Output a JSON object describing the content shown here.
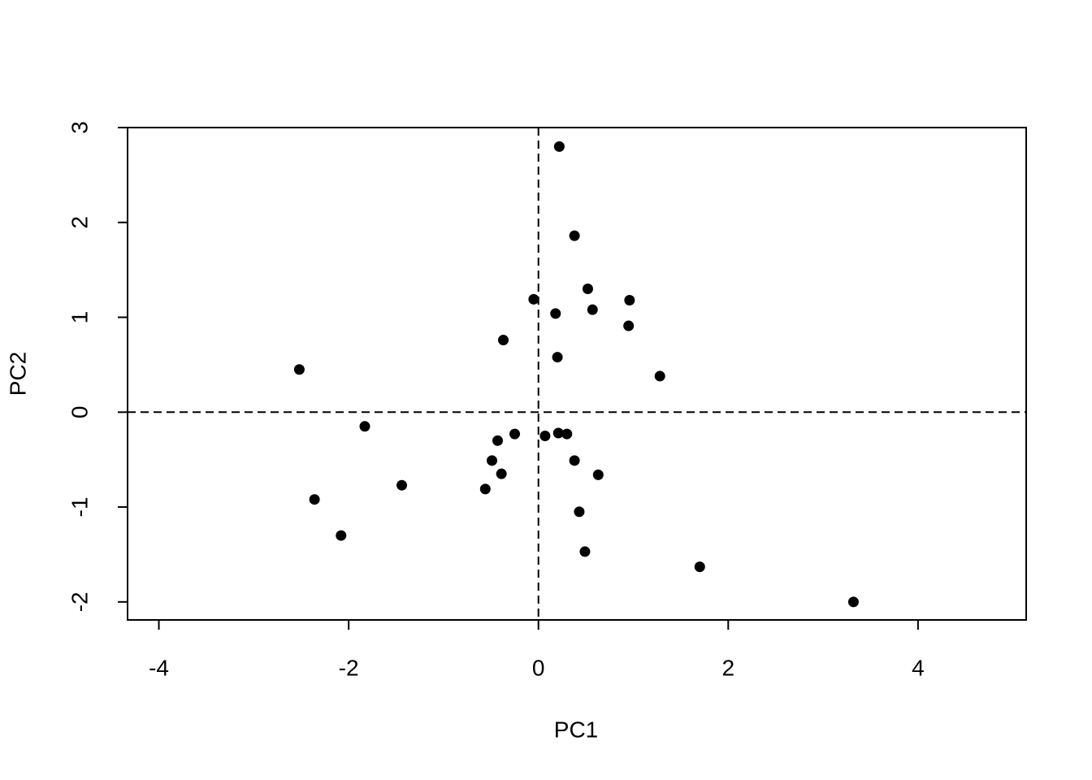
{
  "chart_data": {
    "type": "scatter",
    "x_label": "PC1",
    "y_label": "PC2",
    "x": [
      0.22,
      0.38,
      0.52,
      -0.05,
      0.96,
      0.18,
      0.57,
      0.95,
      -0.37,
      0.2,
      1.28,
      -2.52,
      -1.83,
      -0.25,
      0.07,
      0.21,
      0.3,
      -0.43,
      -0.49,
      0.38,
      -0.39,
      0.63,
      -1.44,
      -0.56,
      -2.36,
      0.43,
      -2.08,
      0.49,
      1.7,
      3.32
    ],
    "y": [
      2.8,
      1.86,
      1.3,
      1.19,
      1.18,
      1.04,
      1.08,
      0.91,
      0.76,
      0.58,
      0.38,
      0.45,
      -0.15,
      -0.23,
      -0.25,
      -0.22,
      -0.23,
      -0.3,
      -0.51,
      -0.51,
      -0.65,
      -0.66,
      -0.77,
      -0.81,
      -0.92,
      -1.05,
      -1.3,
      -1.47,
      -1.63,
      -2.0
    ],
    "color": "#000000",
    "xlim": [
      -4.33,
      5.14
    ],
    "ylim": [
      -2.19,
      3.0
    ],
    "xticks": [
      -4,
      -2,
      0,
      2,
      4
    ],
    "yticks": [
      -2,
      -1,
      0,
      1,
      2,
      3
    ],
    "hlines": [
      0
    ],
    "vlines": [
      0
    ]
  }
}
